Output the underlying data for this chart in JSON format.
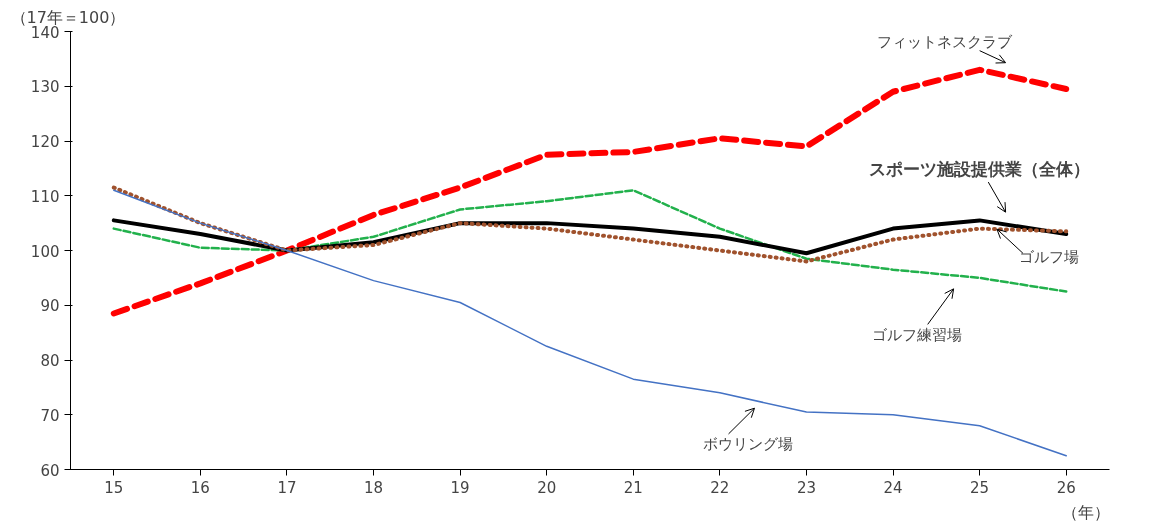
{
  "chart_data": {
    "type": "line",
    "ylabel": "（17年＝100）",
    "xlabel": "（年）",
    "x": [
      15,
      16,
      17,
      18,
      19,
      20,
      21,
      22,
      23,
      24,
      25,
      26
    ],
    "xlim": [
      14.5,
      26.5
    ],
    "xticks": [
      15,
      16,
      17,
      18,
      19,
      20,
      21,
      22,
      23,
      24,
      25,
      26
    ],
    "ylim": [
      60,
      140
    ],
    "yticks": [
      60,
      70,
      80,
      90,
      100,
      110,
      120,
      130,
      140
    ],
    "grid": false,
    "series": [
      {
        "color": "#ff0000",
        "line_style": "dashed",
        "values": [
          88.5,
          94,
          100,
          106.5,
          111.5,
          117.5,
          118,
          120.5,
          119,
          129,
          133,
          129.5
        ]
      },
      {
        "color": "#22b14c",
        "line_style": "dashed",
        "values": [
          104,
          100.5,
          100,
          102.5,
          107.5,
          109,
          111,
          104,
          98.5,
          96.5,
          95,
          92.5
        ]
      },
      {
        "color": "#000000",
        "line_style": "solid",
        "values": [
          105.5,
          103,
          100,
          101.5,
          105,
          105,
          104,
          102.5,
          99.5,
          104,
          105.5,
          103
        ]
      },
      {
        "color": "#a0522d",
        "line_style": "dotted",
        "values": [
          111.5,
          105,
          100,
          101,
          105,
          104,
          102,
          100,
          98,
          102,
          104,
          103.5
        ]
      },
      {
        "color": "#4472c4",
        "line_style": "solid",
        "values": [
          111,
          105,
          100,
          94.5,
          90.5,
          82.5,
          76.5,
          74,
          70.5,
          70,
          68,
          62.5
        ]
      }
    ],
    "annotations": [
      "フィットネスクラブ",
      "スポーツ施設提供業（全体）",
      {
        "text": "ゴルフ場",
        "x": 25.2,
        "y": 103.9
      },
      "ゴルフ練習場",
      "ボウリング場"
    ]
  }
}
